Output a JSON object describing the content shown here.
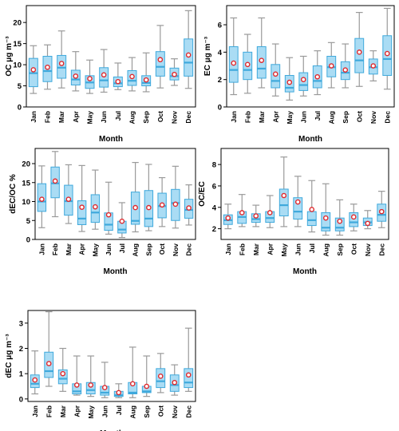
{
  "colors": {
    "box_fill": "#aadcf4",
    "box_stroke": "#3fa9dc",
    "whisker": "#9a9a9a",
    "median": "#3fa9dc",
    "mean": "#e0282c"
  },
  "months": [
    "Jan",
    "Feb",
    "Mar",
    "Apr",
    "May",
    "Jun",
    "Jul",
    "Aug",
    "Sep",
    "Oct",
    "Nov",
    "Dec"
  ],
  "chart_data": [
    {
      "type": "box",
      "xlabel": "Month",
      "ylabel": "OC μg m⁻³",
      "ylim": [
        0,
        24
      ],
      "yticks": [
        0,
        5,
        10,
        15,
        20
      ],
      "categories": [
        "Jan",
        "Feb",
        "Mar",
        "Apr",
        "May",
        "Jun",
        "Jul",
        "Aug",
        "Sep",
        "Oct",
        "Nov",
        "Dec"
      ],
      "boxes": [
        {
          "min": 3.2,
          "q1": 4.8,
          "median": 8.0,
          "q3": 11.5,
          "max": 14.5,
          "mean": 8.8
        },
        {
          "min": 4.2,
          "q1": 6.0,
          "median": 8.5,
          "q3": 12.0,
          "max": 14.7,
          "mean": 9.4
        },
        {
          "min": 4.5,
          "q1": 6.8,
          "median": 9.3,
          "q3": 12.2,
          "max": 18.0,
          "mean": 10.3
        },
        {
          "min": 3.8,
          "q1": 5.2,
          "median": 6.5,
          "q3": 8.7,
          "max": 13.1,
          "mean": 7.3
        },
        {
          "min": 3.2,
          "q1": 4.4,
          "median": 5.8,
          "q3": 7.4,
          "max": 11.1,
          "mean": 6.7
        },
        {
          "min": 3.5,
          "q1": 4.7,
          "median": 6.3,
          "q3": 9.3,
          "max": 13.6,
          "mean": 7.6
        },
        {
          "min": 4.1,
          "q1": 4.8,
          "median": 5.6,
          "q3": 7.1,
          "max": 10.4,
          "mean": 6.0
        },
        {
          "min": 3.8,
          "q1": 5.1,
          "median": 6.2,
          "q3": 8.6,
          "max": 11.7,
          "mean": 7.2
        },
        {
          "min": 3.6,
          "q1": 5.0,
          "median": 5.7,
          "q3": 7.4,
          "max": 12.8,
          "mean": 6.4
        },
        {
          "min": 4.5,
          "q1": 7.3,
          "median": 9.5,
          "q3": 13.1,
          "max": 19.3,
          "mean": 11.2
        },
        {
          "min": 5.1,
          "q1": 6.4,
          "median": 7.3,
          "q3": 9.2,
          "max": 11.4,
          "mean": 7.7
        },
        {
          "min": 4.4,
          "q1": 7.3,
          "median": 10.5,
          "q3": 16.1,
          "max": 22.8,
          "mean": 12.3
        }
      ]
    },
    {
      "type": "box",
      "xlabel": "Month",
      "ylabel": "EC μg m⁻³",
      "ylim": [
        0,
        7.4
      ],
      "yticks": [
        0,
        2,
        4,
        6
      ],
      "categories": [
        "Jan",
        "Feb",
        "Mar",
        "Apr",
        "May",
        "Jun",
        "Jul",
        "Aug",
        "Sep",
        "Oct",
        "Nov",
        "Dec"
      ],
      "boxes": [
        {
          "min": 0.9,
          "q1": 1.8,
          "median": 2.7,
          "q3": 4.4,
          "max": 6.5,
          "mean": 3.2
        },
        {
          "min": 1.0,
          "q1": 2.0,
          "median": 2.7,
          "q3": 4.0,
          "max": 5.3,
          "mean": 3.1
        },
        {
          "min": 1.4,
          "q1": 2.1,
          "median": 2.8,
          "q3": 4.4,
          "max": 6.5,
          "mean": 3.4
        },
        {
          "min": 0.8,
          "q1": 1.4,
          "median": 1.9,
          "q3": 3.1,
          "max": 4.6,
          "mean": 2.4
        },
        {
          "min": 0.5,
          "q1": 1.1,
          "median": 1.4,
          "q3": 2.3,
          "max": 3.6,
          "mean": 1.8
        },
        {
          "min": 0.8,
          "q1": 1.2,
          "median": 1.6,
          "q3": 2.5,
          "max": 3.7,
          "mean": 2.0
        },
        {
          "min": 0.9,
          "q1": 1.4,
          "median": 1.9,
          "q3": 3.0,
          "max": 4.1,
          "mean": 2.2
        },
        {
          "min": 1.4,
          "q1": 2.2,
          "median": 2.9,
          "q3": 3.7,
          "max": 4.7,
          "mean": 3.0
        },
        {
          "min": 1.4,
          "q1": 2.0,
          "median": 2.5,
          "q3": 3.3,
          "max": 4.6,
          "mean": 2.7
        },
        {
          "min": 1.5,
          "q1": 2.5,
          "median": 3.4,
          "q3": 5.0,
          "max": 6.9,
          "mean": 4.0
        },
        {
          "min": 1.9,
          "q1": 2.4,
          "median": 2.9,
          "q3": 3.5,
          "max": 4.1,
          "mean": 3.0
        },
        {
          "min": 1.3,
          "q1": 2.3,
          "median": 3.5,
          "q3": 5.2,
          "max": 7.2,
          "mean": 3.9
        }
      ]
    },
    {
      "type": "box",
      "xlabel": "Month",
      "ylabel": "dEC/OC %",
      "ylim": [
        0,
        24
      ],
      "yticks": [
        0,
        5,
        10,
        15,
        20
      ],
      "categories": [
        "Jan",
        "Feb",
        "Mar",
        "Apr",
        "May",
        "Jun",
        "Jul",
        "Aug",
        "Sep",
        "Oct",
        "Nov",
        "Dec"
      ],
      "boxes": [
        {
          "min": 3.1,
          "q1": 7.4,
          "median": 10.0,
          "q3": 14.7,
          "max": 19.4,
          "mean": 10.6
        },
        {
          "min": 6.0,
          "q1": 11.0,
          "median": 14.8,
          "q3": 19.1,
          "max": 23.2,
          "mean": 15.4
        },
        {
          "min": 4.2,
          "q1": 6.4,
          "median": 10.1,
          "q3": 14.3,
          "max": 19.7,
          "mean": 10.6
        },
        {
          "min": 2.1,
          "q1": 3.9,
          "median": 5.5,
          "q3": 10.2,
          "max": 19.5,
          "mean": 8.5
        },
        {
          "min": 2.7,
          "q1": 4.5,
          "median": 7.1,
          "q3": 11.8,
          "max": 18.3,
          "mean": 8.6
        },
        {
          "min": 1.4,
          "q1": 2.4,
          "median": 3.9,
          "q3": 7.0,
          "max": 15.1,
          "mean": 6.5
        },
        {
          "min": 0.5,
          "q1": 1.7,
          "median": 2.6,
          "q3": 4.8,
          "max": 9.7,
          "mean": 4.8
        },
        {
          "min": 2.0,
          "q1": 4.0,
          "median": 4.9,
          "q3": 12.5,
          "max": 20.3,
          "mean": 8.4
        },
        {
          "min": 2.3,
          "q1": 3.4,
          "median": 5.5,
          "q3": 12.9,
          "max": 19.8,
          "mean": 8.4
        },
        {
          "min": 3.4,
          "q1": 5.7,
          "median": 8.8,
          "q3": 12.2,
          "max": 16.3,
          "mean": 9.1
        },
        {
          "min": 3.0,
          "q1": 5.0,
          "median": 9.6,
          "q3": 13.2,
          "max": 19.3,
          "mean": 9.3
        },
        {
          "min": 3.8,
          "q1": 5.6,
          "median": 7.8,
          "q3": 10.6,
          "max": 14.4,
          "mean": 8.3
        }
      ]
    },
    {
      "type": "box",
      "xlabel": "Month",
      "ylabel": "OC/EC",
      "ylim": [
        1,
        9.5
      ],
      "yticks": [
        2,
        4,
        6,
        8
      ],
      "categories": [
        "Jan",
        "Feb",
        "Mar",
        "Apr",
        "May",
        "Jun",
        "Jul",
        "Aug",
        "Sep",
        "Oct",
        "Nov",
        "Dec"
      ],
      "boxes": [
        {
          "min": 2.0,
          "q1": 2.4,
          "median": 2.8,
          "q3": 3.3,
          "max": 4.3,
          "mean": 3.0
        },
        {
          "min": 2.2,
          "q1": 2.5,
          "median": 3.1,
          "q3": 3.6,
          "max": 5.2,
          "mean": 3.5
        },
        {
          "min": 2.2,
          "q1": 2.6,
          "median": 2.9,
          "q3": 3.4,
          "max": 4.2,
          "mean": 3.2
        },
        {
          "min": 2.1,
          "q1": 2.6,
          "median": 3.0,
          "q3": 3.6,
          "max": 5.1,
          "mean": 3.5
        },
        {
          "min": 2.2,
          "q1": 3.2,
          "median": 4.2,
          "q3": 5.7,
          "max": 8.7,
          "mean": 5.1
        },
        {
          "min": 2.2,
          "q1": 2.9,
          "median": 3.6,
          "q3": 4.9,
          "max": 6.9,
          "mean": 4.5
        },
        {
          "min": 1.7,
          "q1": 2.3,
          "median": 2.8,
          "q3": 3.6,
          "max": 6.5,
          "mean": 3.8
        },
        {
          "min": 1.4,
          "q1": 1.8,
          "median": 2.1,
          "q3": 3.5,
          "max": 6.2,
          "mean": 3.0
        },
        {
          "min": 1.4,
          "q1": 1.8,
          "median": 2.1,
          "q3": 3.0,
          "max": 4.7,
          "mean": 2.7
        },
        {
          "min": 1.8,
          "q1": 2.2,
          "median": 2.6,
          "q3": 3.5,
          "max": 4.3,
          "mean": 3.1
        },
        {
          "min": 2.0,
          "q1": 2.3,
          "median": 2.6,
          "q3": 3.0,
          "max": 3.7,
          "mean": 2.5
        },
        {
          "min": 2.1,
          "q1": 2.7,
          "median": 3.3,
          "q3": 4.3,
          "max": 5.5,
          "mean": 3.6
        }
      ]
    },
    {
      "type": "box",
      "xlabel": "Month",
      "ylabel": "dEC μg m⁻³",
      "ylim": [
        -0.1,
        3.5
      ],
      "yticks": [
        0,
        1,
        2,
        3
      ],
      "categories": [
        "Jan",
        "Feb",
        "Mar",
        "Apr",
        "May",
        "Jun",
        "Jul",
        "Aug",
        "Sep",
        "Oct",
        "Nov",
        "Dec"
      ],
      "boxes": [
        {
          "min": 0.2,
          "q1": 0.45,
          "median": 0.6,
          "q3": 0.95,
          "max": 1.9,
          "mean": 0.75
        },
        {
          "min": 0.5,
          "q1": 0.85,
          "median": 1.1,
          "q3": 1.85,
          "max": 3.45,
          "mean": 1.4
        },
        {
          "min": 0.3,
          "q1": 0.6,
          "median": 0.8,
          "q3": 1.15,
          "max": 2.0,
          "mean": 1.0
        },
        {
          "min": 0.15,
          "q1": 0.2,
          "median": 0.3,
          "q3": 0.6,
          "max": 1.7,
          "mean": 0.55
        },
        {
          "min": 0.1,
          "q1": 0.2,
          "median": 0.35,
          "q3": 0.65,
          "max": 1.7,
          "mean": 0.55
        },
        {
          "min": 0.05,
          "q1": 0.15,
          "median": 0.25,
          "q3": 0.5,
          "max": 1.45,
          "mean": 0.45
        },
        {
          "min": 0.05,
          "q1": 0.1,
          "median": 0.15,
          "q3": 0.3,
          "max": 0.6,
          "mean": 0.25
        },
        {
          "min": 0.05,
          "q1": 0.2,
          "median": 0.25,
          "q3": 0.65,
          "max": 2.05,
          "mean": 0.6
        },
        {
          "min": 0.1,
          "q1": 0.25,
          "median": 0.3,
          "q3": 0.5,
          "max": 1.7,
          "mean": 0.5
        },
        {
          "min": 0.25,
          "q1": 0.45,
          "median": 0.7,
          "q3": 1.2,
          "max": 1.8,
          "mean": 0.9
        },
        {
          "min": 0.15,
          "q1": 0.3,
          "median": 0.55,
          "q3": 0.95,
          "max": 1.35,
          "mean": 0.65
        },
        {
          "min": 0.3,
          "q1": 0.45,
          "median": 0.65,
          "q3": 1.2,
          "max": 2.8,
          "mean": 0.95
        }
      ]
    }
  ]
}
